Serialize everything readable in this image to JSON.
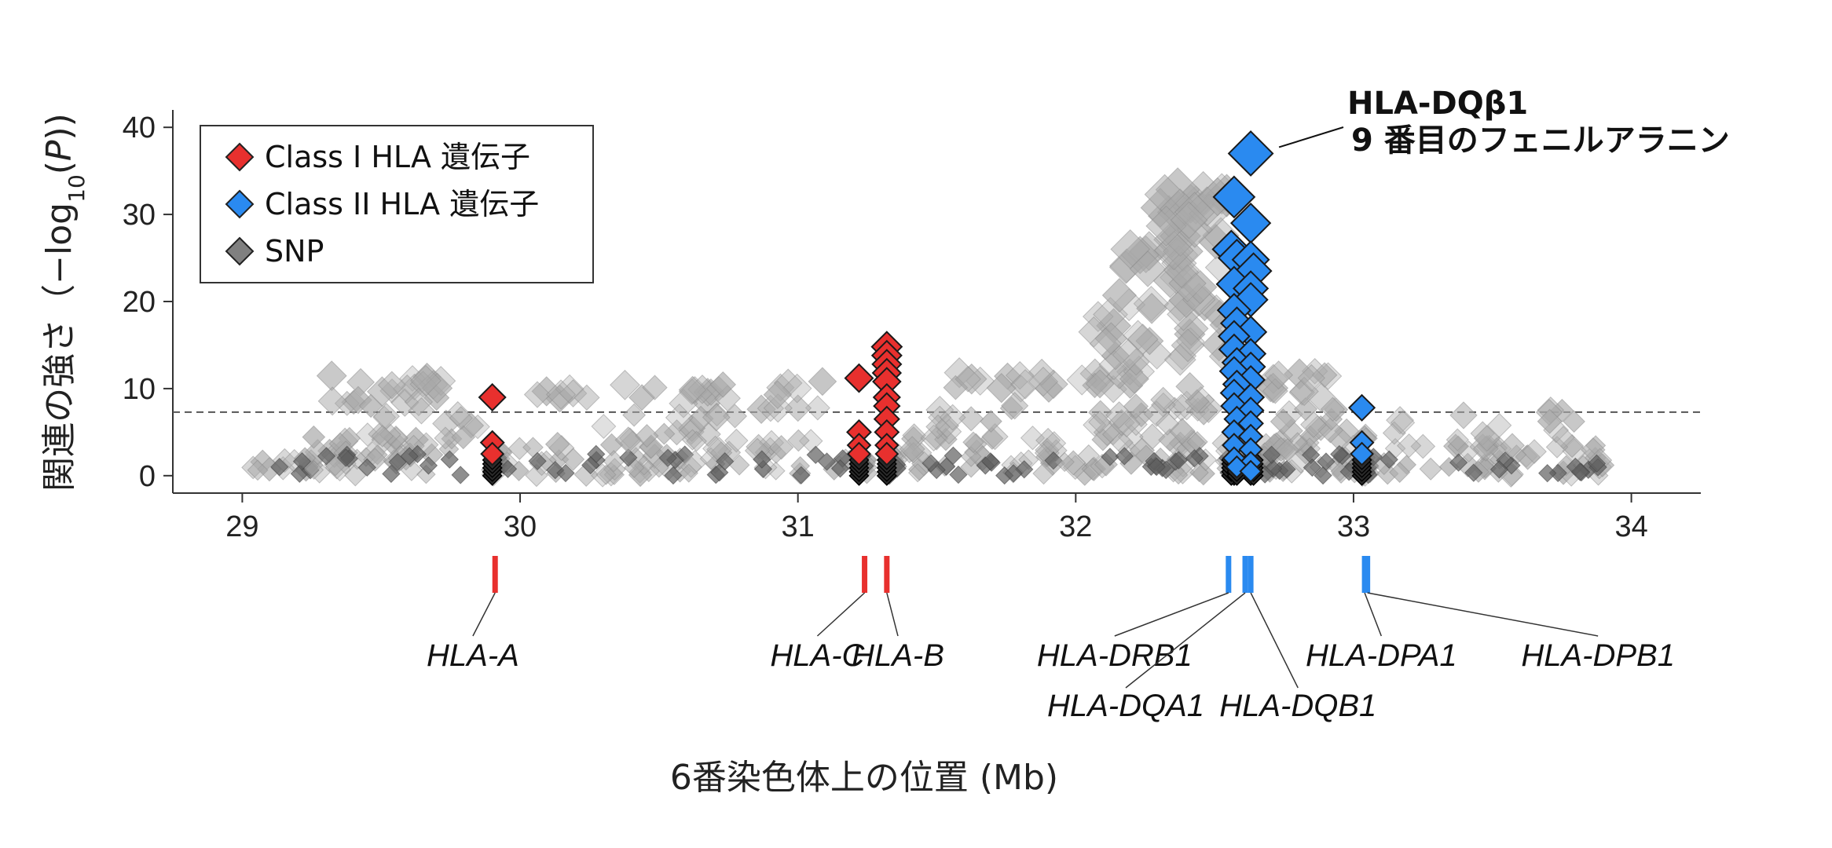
{
  "chart_data": {
    "type": "scatter",
    "title": "",
    "xlabel": "6番染色体上の位置 (Mb)",
    "ylabel_parts": [
      "関連の強さ（−log",
      "10",
      "(",
      "P",
      "))"
    ],
    "xlim": [
      28.75,
      34.25
    ],
    "ylim": [
      -2,
      42
    ],
    "x_ticks": [
      29,
      30,
      31,
      32,
      33,
      34
    ],
    "y_ticks": [
      0,
      10,
      20,
      30,
      40
    ],
    "significance_line": 7.3,
    "legend": {
      "position": "top-left",
      "entries": [
        {
          "label": "Class I HLA 遺伝子",
          "color": "#e8302e"
        },
        {
          "label": "Class II HLA 遺伝子",
          "color": "#2a8af0"
        },
        {
          "label": "SNP",
          "color": "#808080"
        }
      ]
    },
    "annotation": {
      "line1": "HLA-DQβ1",
      "line2": "9 番目のフェニルアラニン",
      "x": 32.63,
      "y": 37
    },
    "colors": {
      "class1": "#e8302e",
      "class2": "#2a8af0",
      "snp": "#a9a9a9",
      "snp_dark": "#606060"
    },
    "series": [
      {
        "name": "Class I HLA 遺伝子",
        "points": [
          [
            29.9,
            9.0
          ],
          [
            29.9,
            3.8
          ],
          [
            29.9,
            2.5
          ],
          [
            31.22,
            11.2
          ],
          [
            31.22,
            5.0
          ],
          [
            31.22,
            3.5
          ],
          [
            31.22,
            2.5
          ],
          [
            31.32,
            14.8
          ],
          [
            31.32,
            13.8
          ],
          [
            31.32,
            12.8
          ],
          [
            31.32,
            11.8
          ],
          [
            31.32,
            10.8
          ],
          [
            31.32,
            9.0
          ],
          [
            31.32,
            8.0
          ],
          [
            31.32,
            6.5
          ],
          [
            31.32,
            5.0
          ],
          [
            31.32,
            3.5
          ],
          [
            31.32,
            2.5
          ]
        ]
      },
      {
        "name": "Class II HLA 遺伝子",
        "points": [
          [
            32.63,
            37.0
          ],
          [
            32.57,
            32.0
          ],
          [
            32.63,
            29.0
          ],
          [
            32.56,
            26.0
          ],
          [
            32.58,
            25.0
          ],
          [
            32.63,
            24.8
          ],
          [
            32.64,
            23.5
          ],
          [
            32.57,
            22.0
          ],
          [
            32.63,
            21.5
          ],
          [
            32.63,
            20.2
          ],
          [
            32.57,
            19.0
          ],
          [
            32.58,
            17.5
          ],
          [
            32.63,
            16.5
          ],
          [
            32.57,
            16.0
          ],
          [
            32.57,
            14.5
          ],
          [
            32.63,
            14.0
          ],
          [
            32.58,
            13.0
          ],
          [
            32.63,
            12.5
          ],
          [
            32.57,
            12.0
          ],
          [
            32.63,
            11.0
          ],
          [
            32.58,
            10.5
          ],
          [
            32.57,
            9.5
          ],
          [
            32.63,
            9.0
          ],
          [
            32.57,
            8.0
          ],
          [
            32.63,
            7.5
          ],
          [
            32.58,
            6.5
          ],
          [
            32.63,
            6.0
          ],
          [
            32.57,
            5.0
          ],
          [
            32.63,
            4.5
          ],
          [
            32.57,
            3.5
          ],
          [
            32.63,
            3.0
          ],
          [
            32.57,
            2.0
          ],
          [
            32.63,
            1.5
          ],
          [
            32.58,
            1.0
          ],
          [
            32.63,
            0.5
          ],
          [
            33.03,
            7.8
          ],
          [
            33.03,
            3.8
          ],
          [
            33.03,
            2.5
          ]
        ]
      }
    ],
    "snp_clusters": [
      {
        "x": [
          29.0,
          29.35
        ],
        "y": [
          0.0,
          2.0
        ],
        "n": 12
      },
      {
        "x": [
          29.2,
          29.8
        ],
        "y": [
          0.0,
          5.0
        ],
        "n": 40
      },
      {
        "x": [
          29.3,
          29.8
        ],
        "y": [
          8.0,
          11.5
        ],
        "n": 22
      },
      {
        "x": [
          29.5,
          29.85
        ],
        "y": [
          4.0,
          8.0
        ],
        "n": 14
      },
      {
        "x": [
          29.9,
          29.95
        ],
        "y": [
          0.0,
          3.0
        ],
        "n": 10
      },
      {
        "x": [
          29.95,
          30.6
        ],
        "y": [
          0.0,
          4.0
        ],
        "n": 35
      },
      {
        "x": [
          30.0,
          30.7
        ],
        "y": [
          8.0,
          10.5
        ],
        "n": 18
      },
      {
        "x": [
          30.3,
          30.7
        ],
        "y": [
          4.0,
          7.5
        ],
        "n": 12
      },
      {
        "x": [
          30.6,
          31.2
        ],
        "y": [
          0.0,
          4.5
        ],
        "n": 30
      },
      {
        "x": [
          30.7,
          31.1
        ],
        "y": [
          6.5,
          11.0
        ],
        "n": 16
      },
      {
        "x": [
          31.22,
          31.25
        ],
        "y": [
          0.0,
          3.0
        ],
        "n": 10
      },
      {
        "x": [
          31.32,
          31.36
        ],
        "y": [
          0.0,
          3.0
        ],
        "n": 12
      },
      {
        "x": [
          31.4,
          31.95
        ],
        "y": [
          0.0,
          5.0
        ],
        "n": 35
      },
      {
        "x": [
          31.55,
          31.95
        ],
        "y": [
          10.0,
          12.0
        ],
        "n": 14
      },
      {
        "x": [
          31.5,
          31.8
        ],
        "y": [
          5.0,
          8.5
        ],
        "n": 10
      },
      {
        "x": [
          31.95,
          32.55
        ],
        "y": [
          0.0,
          5.0
        ],
        "n": 40
      },
      {
        "x": [
          32.0,
          32.5
        ],
        "y": [
          5.0,
          13.0
        ],
        "n": 35
      },
      {
        "x": [
          32.05,
          32.55
        ],
        "y": [
          13.0,
          20.0
        ],
        "n": 30
      },
      {
        "x": [
          32.15,
          32.55
        ],
        "y": [
          20.0,
          28.0
        ],
        "n": 26
      },
      {
        "x": [
          32.3,
          32.55
        ],
        "y": [
          28.0,
          33.5
        ],
        "n": 18
      },
      {
        "x": [
          32.55,
          32.7
        ],
        "y": [
          0.0,
          3.0
        ],
        "n": 14
      },
      {
        "x": [
          32.68,
          33.05
        ],
        "y": [
          0.0,
          5.5
        ],
        "n": 40
      },
      {
        "x": [
          32.68,
          32.95
        ],
        "y": [
          5.5,
          12.0
        ],
        "n": 20
      },
      {
        "x": [
          33.03,
          33.06
        ],
        "y": [
          0.0,
          2.5
        ],
        "n": 8
      },
      {
        "x": [
          33.05,
          33.9
        ],
        "y": [
          0.0,
          3.5
        ],
        "n": 45
      },
      {
        "x": [
          33.1,
          33.85
        ],
        "y": [
          3.0,
          8.0
        ],
        "n": 18
      }
    ],
    "genes": [
      {
        "name": "HLA-A",
        "x": 29.91,
        "class": "class1",
        "label_x": 29.83,
        "label_row": 1
      },
      {
        "name": "HLA-C",
        "x": 31.24,
        "class": "class1",
        "label_x": 31.07,
        "label_row": 1
      },
      {
        "name": "HLA-B",
        "x": 31.32,
        "class": "class1",
        "label_x": 31.36,
        "label_row": 1
      },
      {
        "name": "HLA-DRB1",
        "x": 32.55,
        "class": "class2",
        "label_x": 32.14,
        "label_row": 1
      },
      {
        "name": "HLA-DQA1",
        "x": 32.61,
        "class": "class2",
        "label_x": 32.18,
        "label_row": 2
      },
      {
        "name": "HLA-DQB1",
        "x": 32.63,
        "class": "class2",
        "label_x": 32.8,
        "label_row": 2
      },
      {
        "name": "HLA-DPA1",
        "x": 33.04,
        "class": "class2",
        "label_x": 33.1,
        "label_row": 1
      },
      {
        "name": "HLA-DPB1",
        "x": 33.05,
        "class": "class2",
        "label_x": 33.88,
        "label_row": 1
      }
    ]
  }
}
